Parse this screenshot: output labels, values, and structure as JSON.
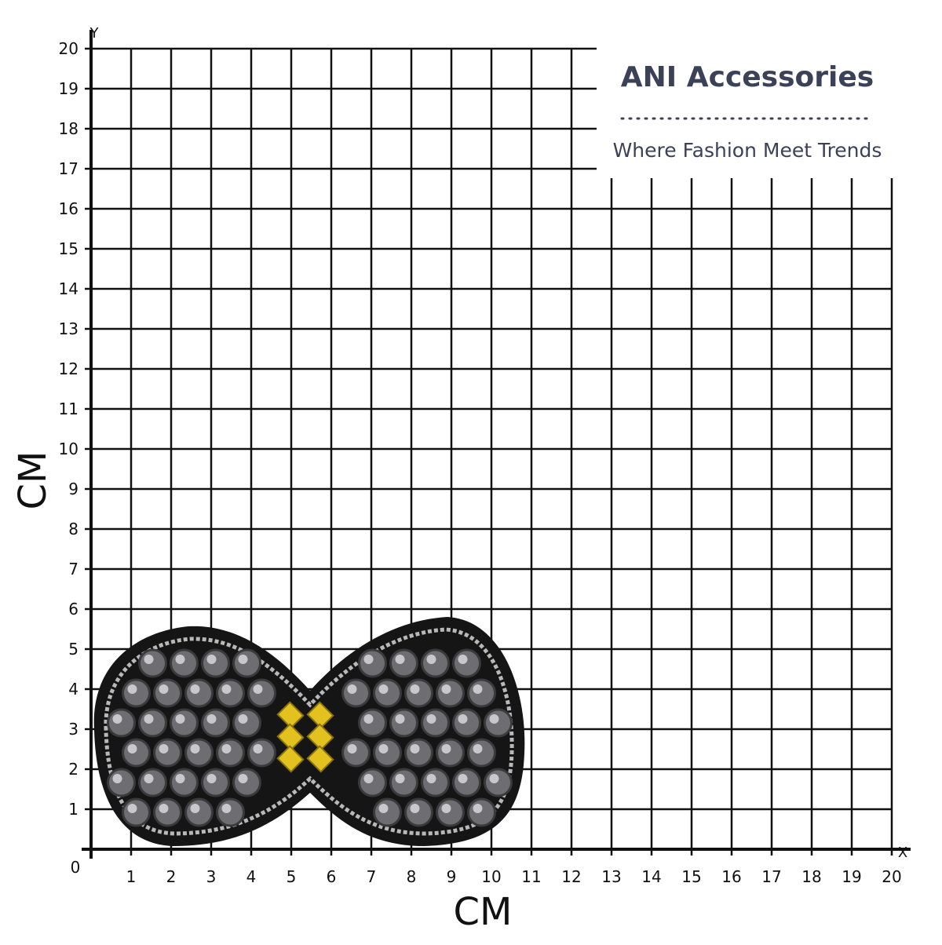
{
  "brand": {
    "title": "ANI Accessories",
    "tagline": "Where Fashion Meet Trends"
  },
  "grid": {
    "x_axis": "X",
    "y_axis": "Y",
    "x_unit": "CM",
    "y_unit": "CM",
    "origin": "0",
    "x_ticks": [
      "1",
      "2",
      "3",
      "4",
      "5",
      "6",
      "7",
      "8",
      "9",
      "10",
      "11",
      "12",
      "13",
      "14",
      "15",
      "16",
      "17",
      "18",
      "19",
      "20"
    ],
    "y_ticks": [
      "1",
      "2",
      "3",
      "4",
      "5",
      "6",
      "7",
      "8",
      "9",
      "10",
      "11",
      "12",
      "13",
      "14",
      "15",
      "16",
      "17",
      "18",
      "19",
      "20"
    ]
  }
}
